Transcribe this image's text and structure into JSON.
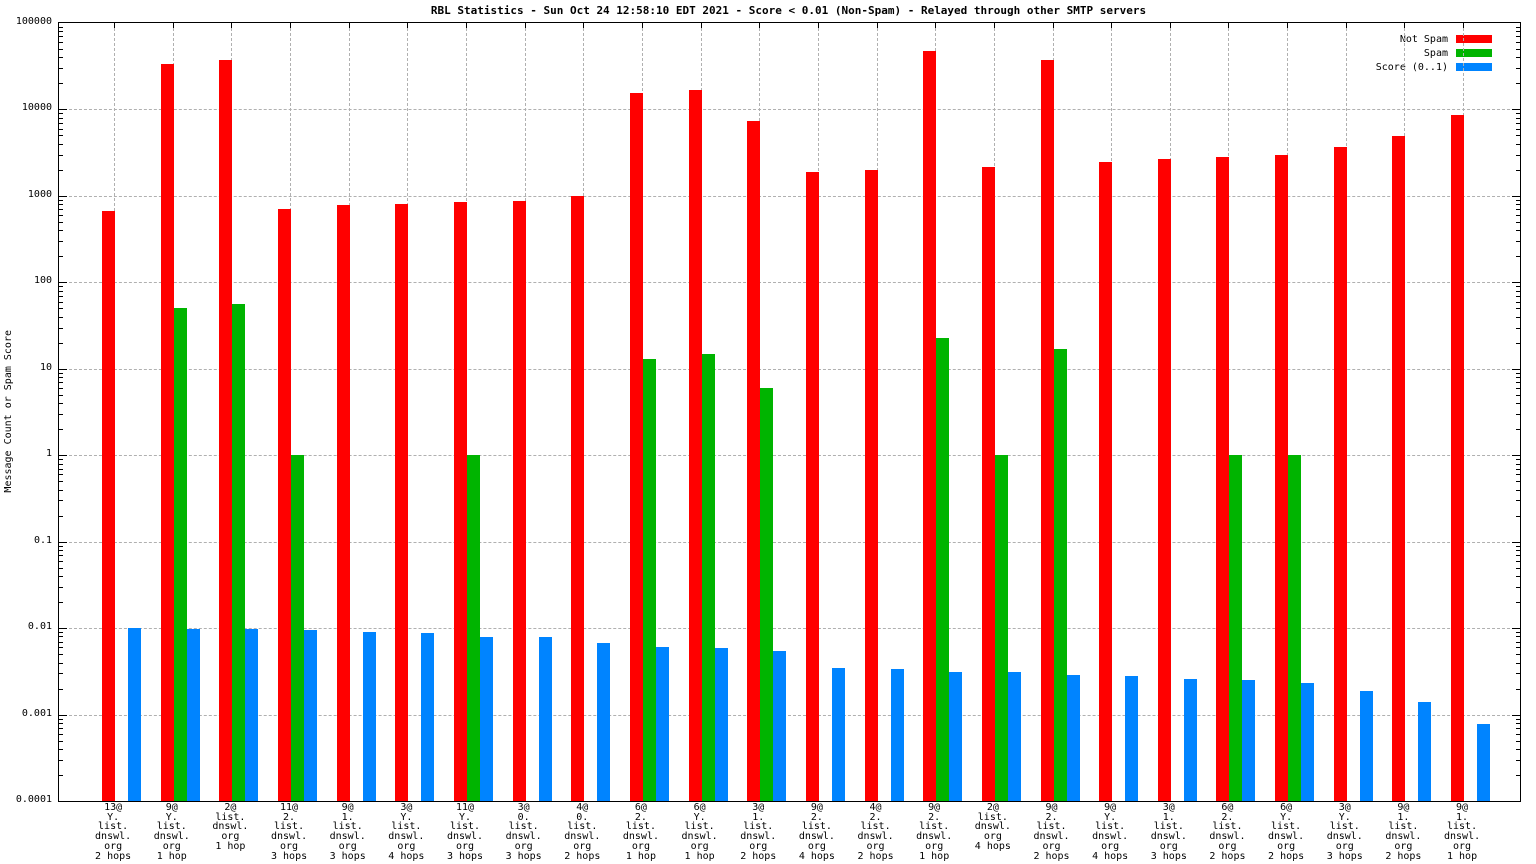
{
  "title": "RBL Statistics - Sun Oct 24 12:58:10 EDT 2021 - Score < 0.01 (Non-Spam) - Relayed through other SMTP servers",
  "y_axis_label": "Message Count or Spam Score",
  "chart_data": {
    "type": "bar",
    "title": "RBL Statistics - Sun Oct 24 12:58:10 EDT 2021 - Score < 0.01 (Non-Spam) - Relayed through other SMTP servers",
    "ylabel": "Message Count or Spam Score",
    "yscale": "log",
    "ylim": [
      0.0001,
      100000
    ],
    "grid": true,
    "legend_position": "top-right",
    "y_tick_labels": [
      "100000",
      "10000",
      "1000",
      "100",
      "10",
      "1",
      "0.1",
      "0.01",
      "0.001",
      "0.0001"
    ],
    "categories": [
      [
        "13@",
        "Y.",
        "list.",
        "dnswl.",
        "org",
        "2 hops"
      ],
      [
        "9@",
        "Y.",
        "list.",
        "dnswl.",
        "org",
        "1 hop"
      ],
      [
        "2@",
        "list.",
        "dnswl.",
        "org",
        "1 hop"
      ],
      [
        "11@",
        "2.",
        "list.",
        "dnswl.",
        "org",
        "3 hops"
      ],
      [
        "9@",
        "1.",
        "list.",
        "dnswl.",
        "org",
        "3 hops"
      ],
      [
        "3@",
        "Y.",
        "list.",
        "dnswl.",
        "org",
        "4 hops"
      ],
      [
        "11@",
        "Y.",
        "list.",
        "dnswl.",
        "org",
        "3 hops"
      ],
      [
        "3@",
        "0.",
        "list.",
        "dnswl.",
        "org",
        "3 hops"
      ],
      [
        "4@",
        "0.",
        "list.",
        "dnswl.",
        "org",
        "2 hops"
      ],
      [
        "6@",
        "2.",
        "list.",
        "dnswl.",
        "org",
        "1 hop"
      ],
      [
        "6@",
        "Y.",
        "list.",
        "dnswl.",
        "org",
        "1 hop"
      ],
      [
        "3@",
        "1.",
        "list.",
        "dnswl.",
        "org",
        "2 hops"
      ],
      [
        "9@",
        "2.",
        "list.",
        "dnswl.",
        "org",
        "4 hops"
      ],
      [
        "4@",
        "2.",
        "list.",
        "dnswl.",
        "org",
        "2 hops"
      ],
      [
        "9@",
        "2.",
        "list.",
        "dnswl.",
        "org",
        "1 hop"
      ],
      [
        "2@",
        "list.",
        "dnswl.",
        "org",
        "4 hops"
      ],
      [
        "9@",
        "2.",
        "list.",
        "dnswl.",
        "org",
        "2 hops"
      ],
      [
        "9@",
        "Y.",
        "list.",
        "dnswl.",
        "org",
        "4 hops"
      ],
      [
        "3@",
        "1.",
        "list.",
        "dnswl.",
        "org",
        "3 hops"
      ],
      [
        "6@",
        "2.",
        "list.",
        "dnswl.",
        "org",
        "2 hops"
      ],
      [
        "6@",
        "Y.",
        "list.",
        "dnswl.",
        "org",
        "2 hops"
      ],
      [
        "3@",
        "Y.",
        "list.",
        "dnswl.",
        "org",
        "3 hops"
      ],
      [
        "9@",
        "1.",
        "list.",
        "dnswl.",
        "org",
        "2 hops"
      ],
      [
        "9@",
        "1.",
        "list.",
        "dnswl.",
        "org",
        "1 hop"
      ]
    ],
    "series": [
      {
        "name": "Not Spam",
        "color": "#ff0000",
        "values": [
          670,
          34000,
          37000,
          700,
          780,
          800,
          850,
          870,
          1000,
          15500,
          17000,
          7400,
          1900,
          2000,
          48000,
          2150,
          37000,
          2450,
          2700,
          2800,
          3000,
          3700,
          4900,
          8700
        ]
      },
      {
        "name": "Spam",
        "color": "#00b400",
        "values": [
          null,
          50,
          56,
          1,
          null,
          null,
          1,
          null,
          null,
          13,
          15,
          6,
          null,
          null,
          23,
          1,
          17,
          null,
          null,
          1,
          1,
          null,
          null,
          null
        ]
      },
      {
        "name": "Score (0..1)",
        "color": "#0084ff",
        "values": [
          0.01,
          0.0098,
          0.0097,
          0.0095,
          0.009,
          0.0088,
          0.008,
          0.0079,
          0.0068,
          0.006,
          0.0059,
          0.0054,
          0.0035,
          0.0034,
          0.0031,
          0.0031,
          0.0029,
          0.0028,
          0.0026,
          0.0025,
          0.0023,
          0.0019,
          0.0014,
          0.00078
        ]
      }
    ]
  }
}
